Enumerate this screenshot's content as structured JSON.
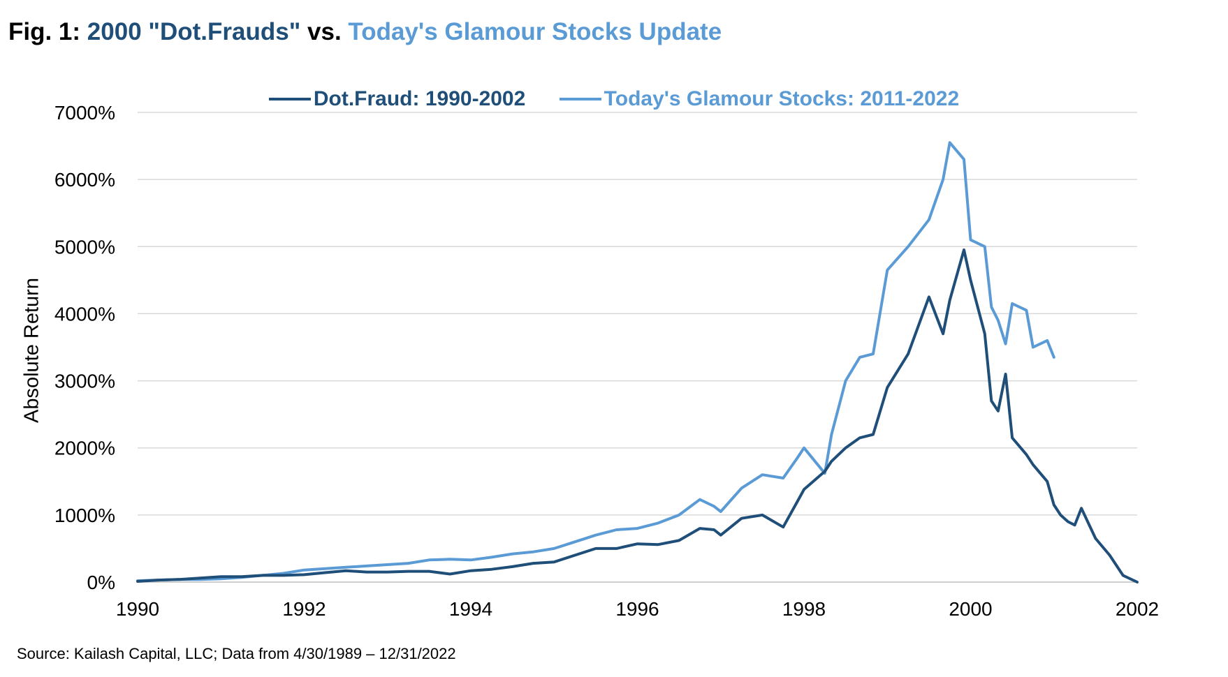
{
  "title": {
    "prefix": "Fig. 1:",
    "part1": "2000 \"Dot.Frauds\"",
    "mid": "vs.",
    "part2": "Today's Glamour Stocks Update"
  },
  "source": "Source: Kailash Capital, LLC; Data from 4/30/1989 – 12/31/2022",
  "colors": {
    "dark": "#1f4e79",
    "light": "#5b9bd5",
    "grid": "#d9d9d9"
  },
  "chart_data": {
    "type": "line",
    "title": "",
    "xlabel": "",
    "ylabel": "Absolute Return",
    "xlim": [
      1990,
      2002
    ],
    "ylim": [
      0,
      7000
    ],
    "grid": true,
    "legend_position": "top",
    "x_ticks": [
      "1990",
      "1992",
      "1994",
      "1996",
      "1998",
      "2000",
      "2002"
    ],
    "y_ticks": [
      "0%",
      "1000%",
      "2000%",
      "3000%",
      "4000%",
      "5000%",
      "6000%",
      "7000%"
    ],
    "series": [
      {
        "name": "Dot.Fraud: 1990-2002",
        "color": "#1f4e79",
        "x": [
          1990.0,
          1990.25,
          1990.5,
          1990.75,
          1991.0,
          1991.25,
          1991.5,
          1991.75,
          1992.0,
          1992.25,
          1992.5,
          1992.75,
          1993.0,
          1993.25,
          1993.5,
          1993.75,
          1994.0,
          1994.25,
          1994.5,
          1994.75,
          1995.0,
          1995.25,
          1995.5,
          1995.75,
          1996.0,
          1996.25,
          1996.5,
          1996.75,
          1996.92,
          1997.0,
          1997.25,
          1997.5,
          1997.75,
          1997.92,
          1998.0,
          1998.25,
          1998.33,
          1998.5,
          1998.67,
          1998.83,
          1999.0,
          1999.25,
          1999.5,
          1999.67,
          1999.75,
          1999.92,
          2000.0,
          2000.17,
          2000.25,
          2000.33,
          2000.42,
          2000.5,
          2000.67,
          2000.75,
          2000.92,
          2001.0,
          2001.08,
          2001.17,
          2001.25,
          2001.33,
          2001.5,
          2001.67,
          2001.83,
          2002.0
        ],
        "y": [
          10,
          30,
          40,
          60,
          80,
          80,
          100,
          100,
          110,
          140,
          170,
          150,
          150,
          160,
          160,
          120,
          170,
          190,
          230,
          280,
          300,
          400,
          500,
          500,
          570,
          560,
          620,
          800,
          780,
          700,
          950,
          1000,
          820,
          1200,
          1380,
          1650,
          1800,
          2000,
          2150,
          2200,
          2900,
          3400,
          4250,
          3700,
          4200,
          4950,
          4500,
          3700,
          2700,
          2550,
          3100,
          2150,
          1900,
          1750,
          1500,
          1150,
          1000,
          900,
          850,
          1100,
          650,
          400,
          100,
          0
        ]
      },
      {
        "name": "Today's Glamour Stocks: 2011-2022",
        "color": "#5b9bd5",
        "x": [
          1990.0,
          1990.25,
          1990.5,
          1990.75,
          1991.0,
          1991.25,
          1991.5,
          1991.75,
          1992.0,
          1992.25,
          1992.5,
          1992.75,
          1993.0,
          1993.25,
          1993.5,
          1993.75,
          1994.0,
          1994.25,
          1994.5,
          1994.75,
          1995.0,
          1995.25,
          1995.5,
          1995.75,
          1996.0,
          1996.25,
          1996.5,
          1996.75,
          1996.92,
          1997.0,
          1997.25,
          1997.5,
          1997.75,
          1997.92,
          1998.0,
          1998.25,
          1998.33,
          1998.5,
          1998.67,
          1998.83,
          1999.0,
          1999.25,
          1999.5,
          1999.67,
          1999.75,
          1999.92,
          2000.0,
          2000.17,
          2000.25,
          2000.33,
          2000.42,
          2000.5,
          2000.67,
          2000.75,
          2000.92,
          2001.0
        ],
        "y": [
          20,
          30,
          40,
          40,
          50,
          70,
          100,
          130,
          180,
          200,
          220,
          240,
          260,
          280,
          330,
          340,
          330,
          370,
          420,
          450,
          500,
          600,
          700,
          780,
          800,
          880,
          1000,
          1230,
          1130,
          1050,
          1400,
          1600,
          1550,
          1850,
          2000,
          1620,
          2200,
          3000,
          3350,
          3400,
          4650,
          5000,
          5400,
          6000,
          6550,
          6300,
          5100,
          5000,
          4100,
          3900,
          3550,
          4150,
          4050,
          3500,
          3600,
          3350
        ]
      }
    ]
  }
}
